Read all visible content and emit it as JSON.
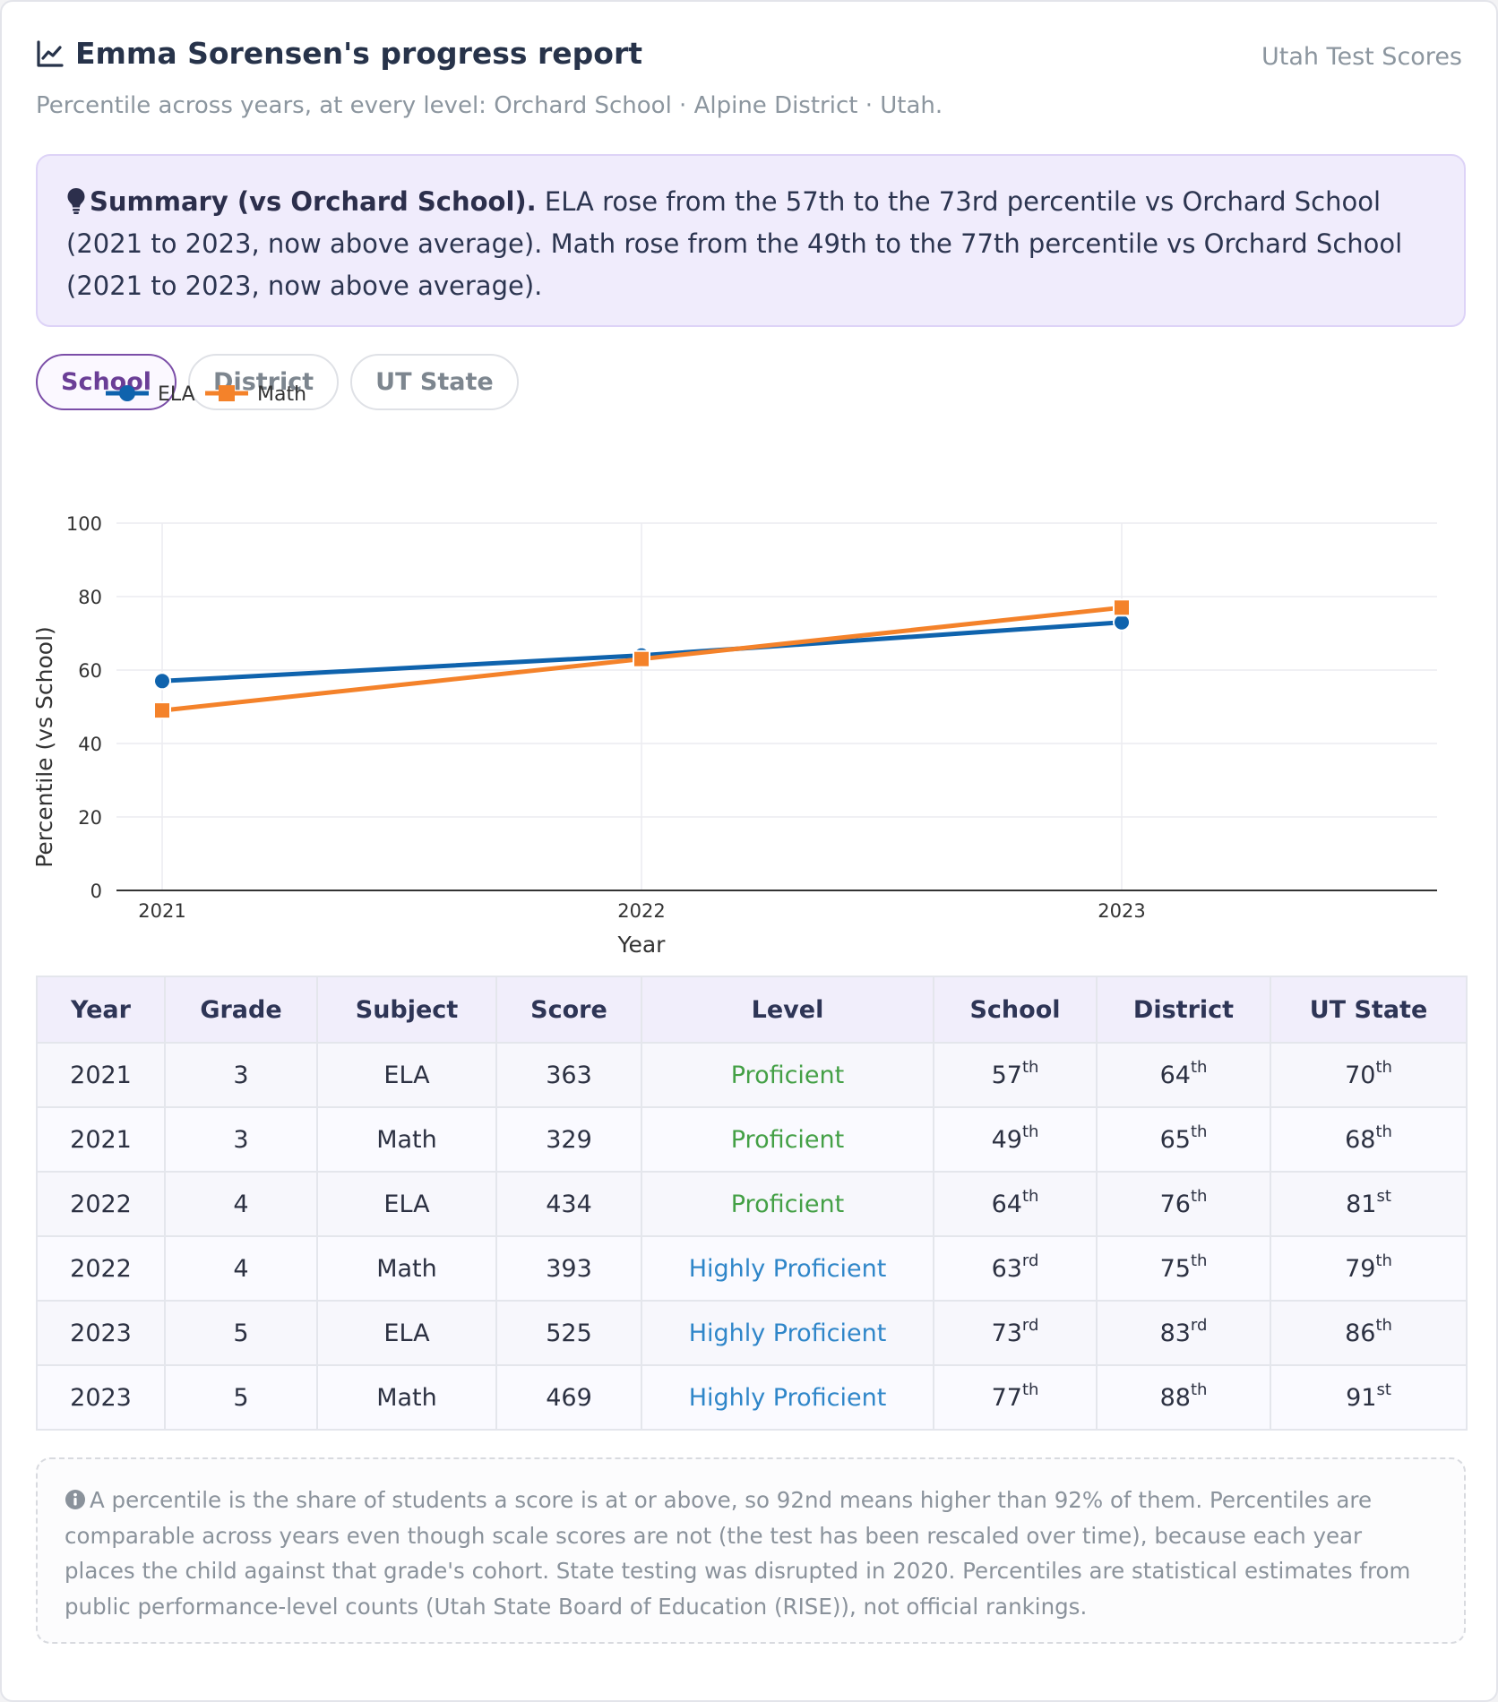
{
  "header": {
    "title": "Emma Sorensen's progress report",
    "brand": "Utah Test Scores",
    "subtitle": "Percentile across years, at every level: Orchard School · Alpine District · Utah."
  },
  "summary": {
    "lead": "Summary (vs Orchard School).",
    "text": " ELA rose from the 57th to the 73rd percentile vs Orchard School (2021 to 2023, now above average). Math rose from the 49th to the 77th percentile vs Orchard School (2021 to 2023, now above average)."
  },
  "tabs": [
    {
      "label": "School",
      "active": true
    },
    {
      "label": "District",
      "active": false
    },
    {
      "label": "UT State",
      "active": false
    }
  ],
  "chart_data": {
    "type": "line",
    "x": [
      "2021",
      "2022",
      "2023"
    ],
    "series": [
      {
        "name": "ELA",
        "values": [
          57,
          64,
          73
        ],
        "color": "#0f63ad",
        "marker": "circle"
      },
      {
        "name": "Math",
        "values": [
          49,
          63,
          77
        ],
        "color": "#f4822a",
        "marker": "square"
      }
    ],
    "xlabel": "Year",
    "ylabel": "Percentile (vs School)",
    "ylim": [
      0,
      100
    ],
    "yticks": [
      0,
      20,
      40,
      60,
      80,
      100
    ],
    "grid": true,
    "legend": "top-left"
  },
  "table": {
    "headers": [
      "Year",
      "Grade",
      "Subject",
      "Score",
      "Level",
      "School",
      "District",
      "UT State"
    ],
    "rows": [
      {
        "year": "2021",
        "grade": "3",
        "subject": "ELA",
        "score": "363",
        "level": "Proficient",
        "school": [
          "57",
          "th"
        ],
        "district": [
          "64",
          "th"
        ],
        "state": [
          "70",
          "th"
        ]
      },
      {
        "year": "2021",
        "grade": "3",
        "subject": "Math",
        "score": "329",
        "level": "Proficient",
        "school": [
          "49",
          "th"
        ],
        "district": [
          "65",
          "th"
        ],
        "state": [
          "68",
          "th"
        ]
      },
      {
        "year": "2022",
        "grade": "4",
        "subject": "ELA",
        "score": "434",
        "level": "Proficient",
        "school": [
          "64",
          "th"
        ],
        "district": [
          "76",
          "th"
        ],
        "state": [
          "81",
          "st"
        ]
      },
      {
        "year": "2022",
        "grade": "4",
        "subject": "Math",
        "score": "393",
        "level": "Highly Proficient",
        "school": [
          "63",
          "rd"
        ],
        "district": [
          "75",
          "th"
        ],
        "state": [
          "79",
          "th"
        ]
      },
      {
        "year": "2023",
        "grade": "5",
        "subject": "ELA",
        "score": "525",
        "level": "Highly Proficient",
        "school": [
          "73",
          "rd"
        ],
        "district": [
          "83",
          "rd"
        ],
        "state": [
          "86",
          "th"
        ]
      },
      {
        "year": "2023",
        "grade": "5",
        "subject": "Math",
        "score": "469",
        "level": "Highly Proficient",
        "school": [
          "77",
          "th"
        ],
        "district": [
          "88",
          "th"
        ],
        "state": [
          "91",
          "st"
        ]
      }
    ]
  },
  "colors": {
    "proficient": "#44a046",
    "highly_proficient": "#2f86c9",
    "accent": "#7b4ea8"
  },
  "note": {
    "text": "A percentile is the share of students a score is at or above, so 92nd means higher than 92% of them. Percentiles are comparable across years even though scale scores are not (the test has been rescaled over time), because each year places the child against that grade's cohort. State testing was disrupted in 2020. Percentiles are statistical estimates from public performance-level counts (Utah State Board of Education (RISE)), not official rankings."
  }
}
